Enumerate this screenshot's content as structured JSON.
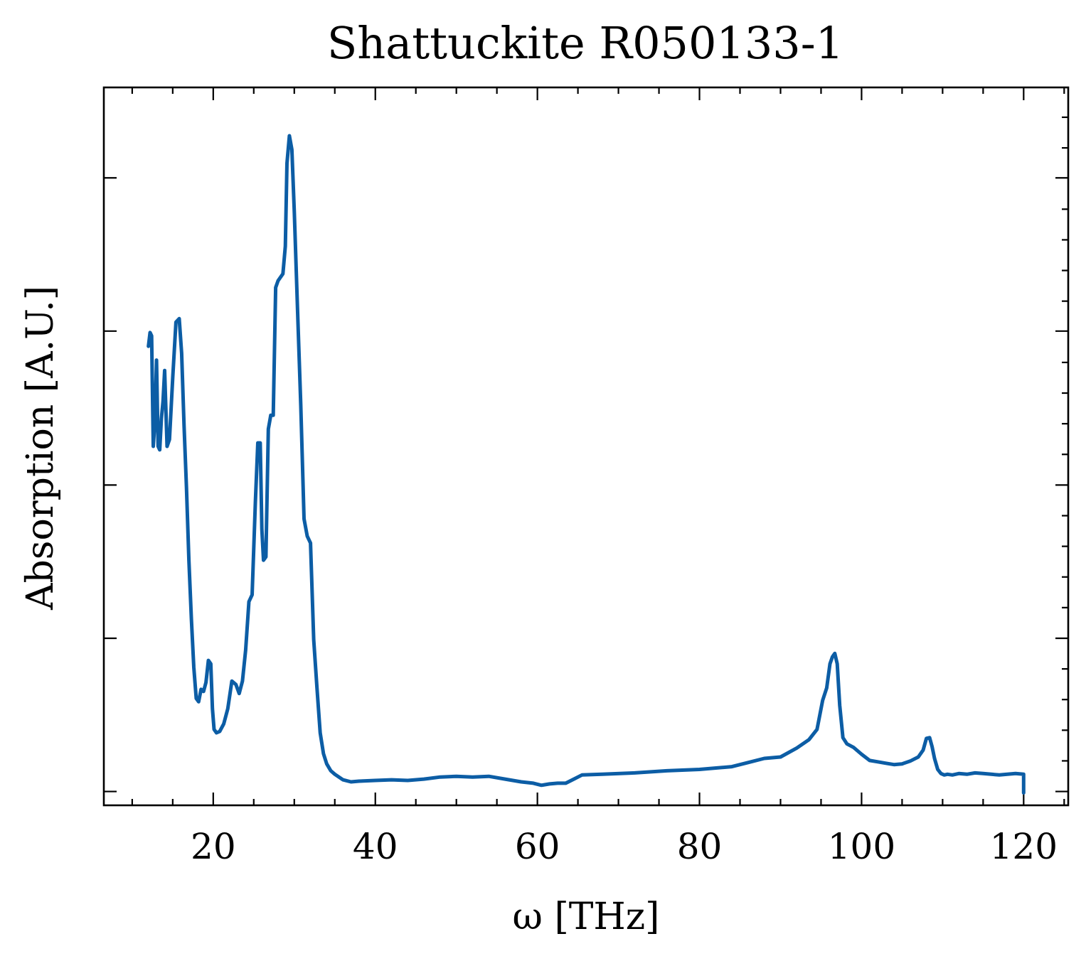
{
  "chart_data": {
    "type": "line",
    "title": "Shattuckite R050133-1",
    "xlabel": "ω [THz]",
    "ylabel": "Absorption [A.U.]",
    "xlim": [
      6.5,
      125.5
    ],
    "ylim": [
      -0.02,
      1.02
    ],
    "x_major_ticks": [
      20,
      40,
      60,
      80,
      100,
      120
    ],
    "x_tick_labels": [
      "20",
      "40",
      "60",
      "80",
      "100",
      "120"
    ],
    "x_minor_step": 5,
    "y_major_ticks": [
      0.0,
      0.222,
      0.444,
      0.667,
      0.889
    ],
    "y_minor_step": 0.0444,
    "y_tick_labels_shown": false,
    "grid": false,
    "line_color": "#0c5da5",
    "series": [
      {
        "x": [
          12.0,
          12.2,
          12.4,
          12.6,
          12.8,
          13.0,
          13.2,
          13.4,
          13.6,
          13.8,
          14.0,
          14.3,
          14.6,
          15.0,
          15.4,
          15.8,
          16.1,
          16.4,
          16.7,
          17.0,
          17.3,
          17.6,
          17.9,
          18.2,
          18.5,
          18.8,
          19.1,
          19.4,
          19.7,
          19.9,
          20.1,
          20.4,
          20.8,
          21.3,
          21.8,
          22.3,
          22.8,
          23.2,
          23.6,
          24.0,
          24.4,
          24.8,
          25.2,
          25.5,
          25.8,
          26.0,
          26.2,
          26.5,
          26.8,
          27.1,
          27.4,
          27.7,
          28.0,
          28.3,
          28.6,
          28.9,
          29.1,
          29.4,
          29.7,
          30.0,
          30.4,
          30.8,
          31.2,
          31.6,
          32.0,
          32.4,
          32.8,
          33.2,
          33.6,
          34.0,
          34.5,
          35.0,
          36.0,
          37.0,
          38.0,
          40.0,
          42.0,
          44.0,
          46.0,
          48.0,
          50.0,
          52.0,
          54.0,
          56.0,
          58.0,
          59.5,
          60.5,
          61.5,
          62.5,
          63.5,
          64.5,
          65.5,
          68.0,
          72.0,
          76.0,
          80.0,
          84.0,
          86.0,
          88.0,
          90.0,
          92.0,
          93.5,
          94.5,
          95.2,
          95.7,
          96.1,
          96.4,
          96.7,
          97.0,
          97.3,
          97.7,
          98.2,
          99.0,
          100.0,
          101.0,
          102.0,
          103.0,
          104.0,
          105.0,
          106.0,
          107.0,
          107.6,
          108.0,
          108.4,
          108.7,
          109.0,
          109.4,
          109.8,
          110.2,
          110.6,
          111.2,
          112.0,
          113.0,
          114.0,
          115.0,
          116.0,
          117.0,
          118.0,
          119.0,
          120.0,
          120.0
        ],
        "y": [
          0.645,
          0.665,
          0.66,
          0.5,
          0.535,
          0.625,
          0.5,
          0.495,
          0.54,
          0.565,
          0.61,
          0.5,
          0.51,
          0.6,
          0.68,
          0.685,
          0.635,
          0.53,
          0.44,
          0.335,
          0.25,
          0.18,
          0.135,
          0.13,
          0.148,
          0.145,
          0.158,
          0.19,
          0.185,
          0.12,
          0.09,
          0.085,
          0.087,
          0.098,
          0.12,
          0.16,
          0.155,
          0.142,
          0.16,
          0.205,
          0.275,
          0.285,
          0.42,
          0.505,
          0.505,
          0.38,
          0.335,
          0.34,
          0.525,
          0.545,
          0.545,
          0.73,
          0.74,
          0.745,
          0.75,
          0.79,
          0.91,
          0.95,
          0.93,
          0.84,
          0.7,
          0.56,
          0.395,
          0.37,
          0.36,
          0.22,
          0.15,
          0.085,
          0.055,
          0.04,
          0.03,
          0.025,
          0.017,
          0.014,
          0.015,
          0.016,
          0.017,
          0.016,
          0.018,
          0.021,
          0.022,
          0.021,
          0.022,
          0.018,
          0.014,
          0.012,
          0.009,
          0.011,
          0.012,
          0.012,
          0.018,
          0.024,
          0.025,
          0.027,
          0.03,
          0.032,
          0.036,
          0.042,
          0.048,
          0.05,
          0.063,
          0.075,
          0.09,
          0.132,
          0.15,
          0.185,
          0.195,
          0.2,
          0.185,
          0.125,
          0.078,
          0.069,
          0.064,
          0.054,
          0.045,
          0.043,
          0.041,
          0.039,
          0.04,
          0.044,
          0.05,
          0.06,
          0.077,
          0.078,
          0.065,
          0.048,
          0.032,
          0.026,
          0.024,
          0.025,
          0.024,
          0.026,
          0.025,
          0.027,
          0.026,
          0.025,
          0.024,
          0.025,
          0.026,
          0.025,
          -0.002
        ]
      }
    ]
  }
}
